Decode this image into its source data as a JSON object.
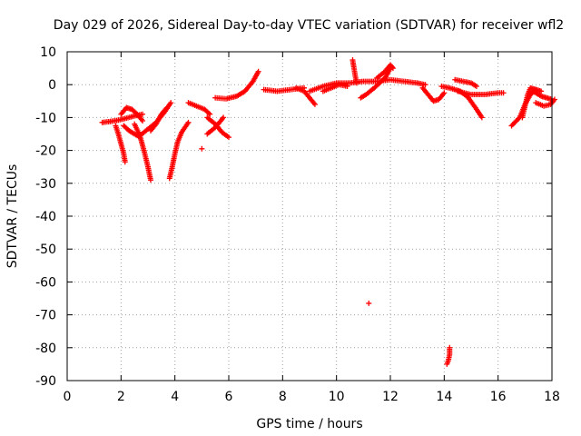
{
  "chart_data": {
    "type": "scatter",
    "title": "Day 029 of 2026, Sidereal Day-to-day VTEC variation (SDTVAR) for receiver wfl2",
    "xlabel": "GPS time / hours",
    "ylabel": "SDTVAR / TECUs",
    "xlim": [
      0,
      18
    ],
    "ylim": [
      -90,
      10
    ],
    "xticks": [
      0,
      2,
      4,
      6,
      8,
      10,
      12,
      14,
      16,
      18
    ],
    "yticks": [
      10,
      0,
      -10,
      -20,
      -30,
      -40,
      -50,
      -60,
      -70,
      -80,
      -90
    ],
    "grid": true,
    "marker": "plus",
    "color": "#ff0000",
    "series": [
      {
        "name": "s1",
        "values": [
          [
            1.3,
            -11.5
          ],
          [
            1.6,
            -11.2
          ],
          [
            1.9,
            -10.8
          ],
          [
            2.2,
            -10.2
          ],
          [
            2.5,
            -9.5
          ],
          [
            2.8,
            -9.0
          ]
        ]
      },
      {
        "name": "s2",
        "values": [
          [
            1.8,
            -12.5
          ],
          [
            1.9,
            -15
          ],
          [
            2.0,
            -18
          ],
          [
            2.1,
            -21
          ],
          [
            2.15,
            -23.5
          ]
        ]
      },
      {
        "name": "s3",
        "values": [
          [
            2.0,
            -9.0
          ],
          [
            2.2,
            -7.0
          ],
          [
            2.4,
            -7.5
          ],
          [
            2.6,
            -9.0
          ],
          [
            2.8,
            -11.0
          ]
        ]
      },
      {
        "name": "s4",
        "values": [
          [
            2.1,
            -12.5
          ],
          [
            2.3,
            -14.0
          ],
          [
            2.5,
            -15.0
          ],
          [
            2.7,
            -16.0
          ]
        ]
      },
      {
        "name": "s5",
        "values": [
          [
            2.5,
            -12.0
          ],
          [
            2.7,
            -15.5
          ],
          [
            2.85,
            -20.0
          ],
          [
            3.0,
            -25.0
          ],
          [
            3.1,
            -29.0
          ]
        ]
      },
      {
        "name": "s6",
        "values": [
          [
            2.7,
            -15.5
          ],
          [
            3.0,
            -13.5
          ],
          [
            3.3,
            -11.5
          ],
          [
            3.6,
            -8.5
          ],
          [
            3.85,
            -5.5
          ]
        ]
      },
      {
        "name": "s7",
        "values": [
          [
            3.1,
            -14.0
          ],
          [
            3.3,
            -12.0
          ],
          [
            3.5,
            -9.0
          ],
          [
            3.7,
            -7.0
          ]
        ]
      },
      {
        "name": "s8",
        "values": [
          [
            3.8,
            -28.5
          ],
          [
            3.9,
            -25.0
          ],
          [
            4.0,
            -21.0
          ],
          [
            4.1,
            -17.5
          ],
          [
            4.25,
            -14.5
          ],
          [
            4.5,
            -11.5
          ]
        ]
      },
      {
        "name": "s9",
        "values": [
          [
            4.5,
            -5.5
          ],
          [
            4.8,
            -6.5
          ],
          [
            5.1,
            -7.5
          ],
          [
            5.3,
            -9.0
          ]
        ]
      },
      {
        "name": "s10",
        "values": [
          [
            5.0,
            -19.5
          ]
        ]
      },
      {
        "name": "s11",
        "values": [
          [
            5.2,
            -15.0
          ],
          [
            5.5,
            -13.0
          ],
          [
            5.8,
            -10.0
          ]
        ]
      },
      {
        "name": "s12",
        "values": [
          [
            5.2,
            -10.0
          ],
          [
            5.5,
            -12.0
          ],
          [
            5.75,
            -14.5
          ],
          [
            6.0,
            -16.0
          ]
        ]
      },
      {
        "name": "s13",
        "values": [
          [
            5.5,
            -4.0
          ],
          [
            5.9,
            -4.3
          ],
          [
            6.3,
            -3.5
          ],
          [
            6.6,
            -2.0
          ],
          [
            6.9,
            1.0
          ],
          [
            7.1,
            4.0
          ]
        ]
      },
      {
        "name": "s14",
        "values": [
          [
            7.3,
            -1.5
          ],
          [
            7.8,
            -2.0
          ],
          [
            8.3,
            -1.5
          ],
          [
            8.8,
            -1.0
          ]
        ]
      },
      {
        "name": "s15",
        "values": [
          [
            8.5,
            -1.0
          ],
          [
            8.8,
            -2.0
          ],
          [
            9.0,
            -4.0
          ],
          [
            9.2,
            -6.0
          ]
        ]
      },
      {
        "name": "s16",
        "values": [
          [
            9.0,
            -2.0
          ],
          [
            9.5,
            -0.5
          ],
          [
            10.0,
            0.5
          ],
          [
            10.5,
            0.5
          ],
          [
            11.0,
            1.0
          ],
          [
            11.5,
            1.0
          ],
          [
            12.0,
            1.5
          ],
          [
            12.5,
            1.0
          ],
          [
            13.0,
            0.5
          ],
          [
            13.3,
            0.0
          ]
        ]
      },
      {
        "name": "s17",
        "values": [
          [
            9.5,
            -2.0
          ],
          [
            9.8,
            -1.0
          ],
          [
            10.1,
            0.0
          ],
          [
            10.4,
            -0.5
          ]
        ]
      },
      {
        "name": "s18",
        "values": [
          [
            10.6,
            7.5
          ],
          [
            10.65,
            5.0
          ],
          [
            10.7,
            2.5
          ],
          [
            10.75,
            0.5
          ]
        ]
      },
      {
        "name": "s19",
        "values": [
          [
            10.9,
            -4.0
          ],
          [
            11.1,
            -3.0
          ],
          [
            11.4,
            -1.0
          ],
          [
            11.6,
            0.5
          ],
          [
            11.8,
            2.0
          ],
          [
            12.0,
            5.0
          ]
        ]
      },
      {
        "name": "s20",
        "values": [
          [
            11.2,
            -66.5
          ]
        ]
      },
      {
        "name": "s21",
        "values": [
          [
            11.5,
            2.0
          ],
          [
            11.8,
            4.0
          ],
          [
            12.0,
            6.0
          ],
          [
            12.1,
            5.0
          ]
        ]
      },
      {
        "name": "s22",
        "values": [
          [
            13.2,
            -1.0
          ],
          [
            13.4,
            -3.0
          ],
          [
            13.6,
            -5.0
          ],
          [
            13.8,
            -4.5
          ],
          [
            14.0,
            -2.5
          ]
        ]
      },
      {
        "name": "s23",
        "values": [
          [
            13.9,
            -0.5
          ],
          [
            14.2,
            -1.0
          ],
          [
            14.6,
            -2.0
          ],
          [
            14.9,
            -4.0
          ],
          [
            15.2,
            -7.5
          ],
          [
            15.4,
            -10.0
          ]
        ]
      },
      {
        "name": "s24",
        "values": [
          [
            14.2,
            -80.0
          ],
          [
            14.2,
            -82.0
          ],
          [
            14.15,
            -84.0
          ],
          [
            14.1,
            -85.0
          ]
        ]
      },
      {
        "name": "s25",
        "values": [
          [
            14.4,
            1.5
          ],
          [
            14.7,
            1.0
          ],
          [
            15.0,
            0.5
          ],
          [
            15.2,
            -0.5
          ]
        ]
      },
      {
        "name": "s26",
        "values": [
          [
            14.5,
            -2.0
          ],
          [
            15.0,
            -3.0
          ],
          [
            15.5,
            -3.0
          ],
          [
            16.0,
            -2.5
          ],
          [
            16.2,
            -2.5
          ]
        ]
      },
      {
        "name": "s27",
        "values": [
          [
            16.5,
            -12.5
          ],
          [
            16.8,
            -10.0
          ],
          [
            17.0,
            -6.0
          ],
          [
            17.2,
            -3.0
          ],
          [
            17.4,
            -1.5
          ],
          [
            17.6,
            -2.0
          ]
        ]
      },
      {
        "name": "s28",
        "values": [
          [
            16.9,
            -10.0
          ],
          [
            17.0,
            -6.5
          ],
          [
            17.1,
            -3.0
          ],
          [
            17.2,
            -1.0
          ],
          [
            17.4,
            -1.5
          ]
        ]
      },
      {
        "name": "s29",
        "values": [
          [
            17.3,
            -2.0
          ],
          [
            17.6,
            -3.5
          ],
          [
            17.8,
            -4.0
          ],
          [
            18.0,
            -4.5
          ]
        ]
      },
      {
        "name": "s30",
        "values": [
          [
            17.4,
            -5.5
          ],
          [
            17.7,
            -6.5
          ],
          [
            17.95,
            -6.0
          ],
          [
            18.1,
            -4.5
          ]
        ]
      }
    ]
  }
}
